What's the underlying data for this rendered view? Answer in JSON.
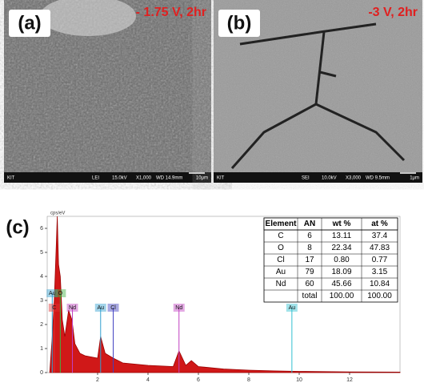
{
  "panels": [
    {
      "label": "(a)",
      "condition": "- 1.75 V, 2hr",
      "info": [
        "KIT",
        "LEI",
        "15.0kV",
        "X1,000",
        "WD 14.9mm",
        "10μm"
      ]
    },
    {
      "label": "(b)",
      "condition": "-3 V, 2hr",
      "info": [
        "KIT",
        "SEI",
        "10.0kV",
        "X3,000",
        "WD 9.5mm",
        "1μm"
      ]
    }
  ],
  "spectrum": {
    "label": "(c)",
    "ylabel": "cps/eV",
    "xlim": [
      0,
      14
    ],
    "ylim": [
      0,
      6.5
    ],
    "xticks": [
      2,
      4,
      6,
      8,
      10,
      12
    ],
    "yticks": [
      0,
      1,
      2,
      3,
      4,
      5,
      6
    ],
    "x": [
      0.1,
      0.2,
      0.28,
      0.35,
      0.4,
      0.45,
      0.52,
      0.6,
      0.7,
      0.85,
      0.98,
      1.1,
      1.3,
      1.5,
      2.0,
      2.12,
      2.3,
      2.62,
      3,
      4,
      5,
      5.23,
      5.5,
      5.72,
      6,
      7,
      8,
      9,
      10,
      12,
      14
    ],
    "values": [
      0,
      1.5,
      3,
      5,
      6.5,
      4.5,
      4,
      2.2,
      1.5,
      2.6,
      2.2,
      1.2,
      0.8,
      0.7,
      0.6,
      1.5,
      0.8,
      0.6,
      0.4,
      0.3,
      0.25,
      0.9,
      0.3,
      0.5,
      0.25,
      0.15,
      0.1,
      0.07,
      0.05,
      0.03,
      0.02
    ],
    "peaks": [
      {
        "label": "Au",
        "x": 0.2,
        "color": "#30a0d0",
        "level": 3.3
      },
      {
        "label": "O",
        "x": 0.52,
        "color": "#40b040",
        "level": 3.3
      },
      {
        "label": "C",
        "x": 0.28,
        "color": "#e03030",
        "level": 2.7
      },
      {
        "label": "Nd",
        "x": 1.0,
        "color": "#c040c0",
        "level": 2.7
      },
      {
        "label": "Au",
        "x": 2.12,
        "color": "#30a0d0",
        "level": 2.7
      },
      {
        "label": "Cl",
        "x": 2.62,
        "color": "#4040c0",
        "level": 2.7
      },
      {
        "label": "Nd",
        "x": 5.23,
        "color": "#c040c0",
        "level": 2.7
      },
      {
        "label": "Au",
        "x": 9.71,
        "color": "#30c0d0",
        "level": 2.7
      }
    ],
    "table": {
      "header": [
        "Element",
        "AN",
        "wt %",
        "at %"
      ],
      "rows": [
        [
          "C",
          "6",
          "13.11",
          "37.4"
        ],
        [
          "O",
          "8",
          "22.34",
          "47.83"
        ],
        [
          "Cl",
          "17",
          "0.80",
          "0.77"
        ],
        [
          "Au",
          "79",
          "18.09",
          "3.15"
        ],
        [
          "Nd",
          "60",
          "45.66",
          "10.84"
        ],
        [
          "",
          "total",
          "100.00",
          "100.00"
        ]
      ]
    }
  }
}
